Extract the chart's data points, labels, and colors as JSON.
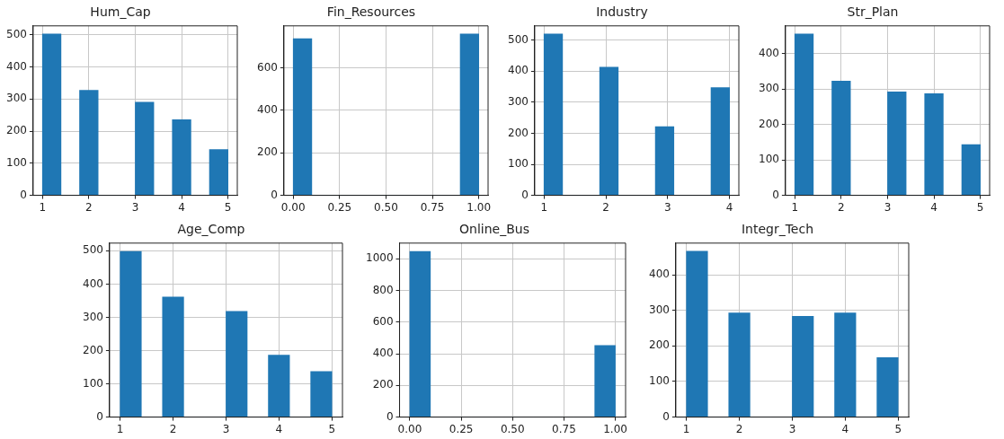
{
  "chart_data": [
    {
      "type": "histogram",
      "title": "Hum_Cap",
      "bins": [
        1,
        1.4,
        1.8,
        2.2,
        2.6,
        3,
        3.4,
        3.8,
        4.2,
        4.6,
        5
      ],
      "values": [
        503,
        0,
        327,
        0,
        0,
        290,
        0,
        236,
        0,
        143
      ],
      "color": "#1f77b4",
      "xlim": [
        0.8,
        5.2
      ],
      "ylim": [
        0,
        528
      ],
      "xticks": [
        1,
        2,
        3,
        4,
        5
      ],
      "yticks": [
        0,
        100,
        200,
        300,
        400,
        500
      ],
      "grid": true
    },
    {
      "type": "histogram",
      "title": "Fin_Resources",
      "bins": [
        0,
        0.1,
        0.2,
        0.3,
        0.4,
        0.5,
        0.6,
        0.7,
        0.8,
        0.9,
        1
      ],
      "values": [
        738,
        0,
        0,
        0,
        0,
        0,
        0,
        0,
        0,
        760
      ],
      "color": "#1f77b4",
      "xlim": [
        -0.05,
        1.05
      ],
      "ylim": [
        0,
        798
      ],
      "xticks": [
        {
          "value": 0,
          "label": "0.00"
        },
        {
          "value": 0.25,
          "label": "0.25"
        },
        {
          "value": 0.5,
          "label": "0.50"
        },
        {
          "value": 0.75,
          "label": "0.75"
        },
        {
          "value": 1,
          "label": "1.00"
        }
      ],
      "yticks": [
        0,
        200,
        400,
        600
      ],
      "grid": true
    },
    {
      "type": "histogram",
      "title": "Industry",
      "bins": [
        1,
        1.3,
        1.6,
        1.9,
        2.2,
        2.5,
        2.8,
        3.1,
        3.4,
        3.7,
        4
      ],
      "values": [
        520,
        0,
        0,
        413,
        0,
        0,
        221,
        0,
        0,
        347
      ],
      "color": "#1f77b4",
      "xlim": [
        0.85,
        4.15
      ],
      "ylim": [
        0,
        546
      ],
      "xticks": [
        1,
        2,
        3,
        4
      ],
      "yticks": [
        0,
        100,
        200,
        300,
        400,
        500
      ],
      "grid": true
    },
    {
      "type": "histogram",
      "title": "Str_Plan",
      "bins": [
        1,
        1.4,
        1.8,
        2.2,
        2.6,
        3,
        3.4,
        3.8,
        4.2,
        4.6,
        5
      ],
      "values": [
        455,
        0,
        322,
        0,
        0,
        292,
        0,
        287,
        0,
        143
      ],
      "color": "#1f77b4",
      "xlim": [
        0.8,
        5.2
      ],
      "ylim": [
        0,
        478
      ],
      "xticks": [
        1,
        2,
        3,
        4,
        5
      ],
      "yticks": [
        0,
        100,
        200,
        300,
        400
      ],
      "grid": true
    },
    {
      "type": "histogram",
      "title": "Age_Comp",
      "bins": [
        1,
        1.4,
        1.8,
        2.2,
        2.6,
        3,
        3.4,
        3.8,
        4.2,
        4.6,
        5
      ],
      "values": [
        498,
        0,
        361,
        0,
        0,
        318,
        0,
        186,
        0,
        137
      ],
      "color": "#1f77b4",
      "xlim": [
        0.8,
        5.2
      ],
      "ylim": [
        0,
        523
      ],
      "xticks": [
        1,
        2,
        3,
        4,
        5
      ],
      "yticks": [
        0,
        100,
        200,
        300,
        400,
        500
      ],
      "grid": true
    },
    {
      "type": "histogram",
      "title": "Online_Bus",
      "bins": [
        0,
        0.1,
        0.2,
        0.3,
        0.4,
        0.5,
        0.6,
        0.7,
        0.8,
        0.9,
        1
      ],
      "values": [
        1047,
        0,
        0,
        0,
        0,
        0,
        0,
        0,
        0,
        452
      ],
      "color": "#1f77b4",
      "xlim": [
        -0.05,
        1.05
      ],
      "ylim": [
        0,
        1099
      ],
      "xticks": [
        {
          "value": 0,
          "label": "0.00"
        },
        {
          "value": 0.25,
          "label": "0.25"
        },
        {
          "value": 0.5,
          "label": "0.50"
        },
        {
          "value": 0.75,
          "label": "0.75"
        },
        {
          "value": 1,
          "label": "1.00"
        }
      ],
      "yticks": [
        0,
        200,
        400,
        600,
        800,
        1000
      ],
      "grid": true
    },
    {
      "type": "histogram",
      "title": "Integr_Tech",
      "bins": [
        1,
        1.4,
        1.8,
        2.2,
        2.6,
        3,
        3.4,
        3.8,
        4.2,
        4.6,
        5
      ],
      "values": [
        466,
        0,
        293,
        0,
        0,
        283,
        0,
        293,
        0,
        167
      ],
      "color": "#1f77b4",
      "xlim": [
        0.8,
        5.2
      ],
      "ylim": [
        0,
        489
      ],
      "xticks": [
        1,
        2,
        3,
        4,
        5
      ],
      "yticks": [
        0,
        100,
        200,
        300,
        400
      ],
      "grid": true
    }
  ]
}
